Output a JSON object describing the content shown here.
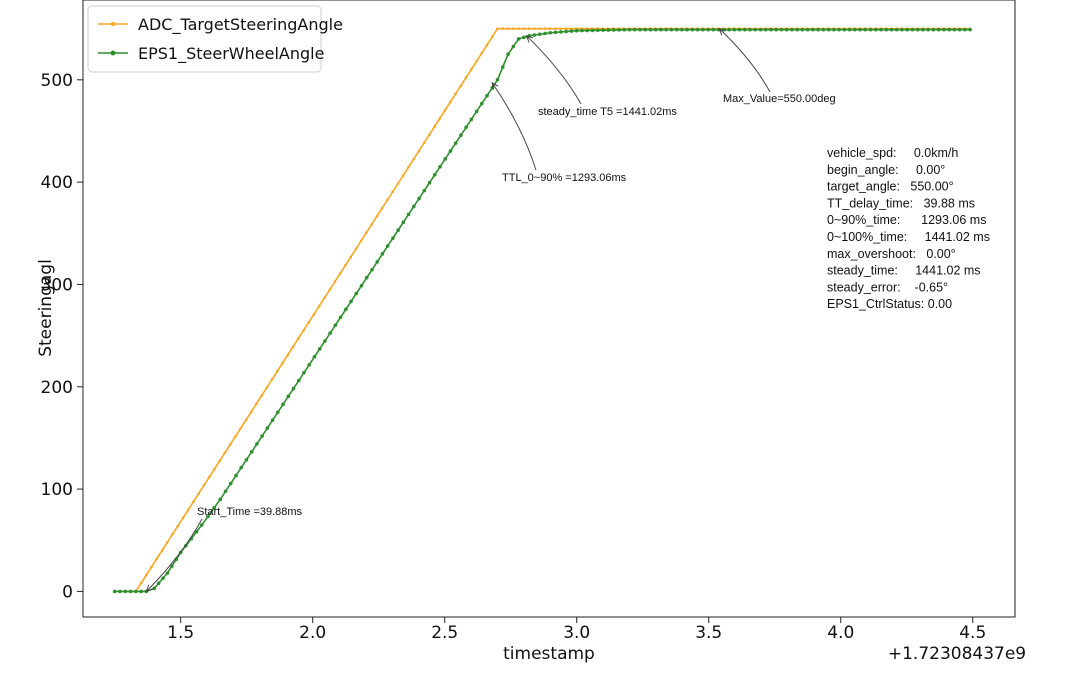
{
  "chart_data": {
    "type": "line",
    "xlabel": "timestamp",
    "ylabel": "Steeringagl",
    "x_offset_label": "+1.72308437e9",
    "xlim": [
      1.13,
      4.66
    ],
    "ylim": [
      -25,
      578
    ],
    "x_ticks": [
      1.5,
      2.0,
      2.5,
      3.0,
      3.5,
      4.0,
      4.5
    ],
    "x_tick_labels": [
      "1.5",
      "2.0",
      "2.5",
      "3.0",
      "3.5",
      "4.0",
      "4.5"
    ],
    "y_ticks": [
      0,
      100,
      200,
      300,
      400,
      500
    ],
    "y_tick_labels": [
      "0",
      "100",
      "200",
      "300",
      "400",
      "500"
    ],
    "grid": false,
    "legend_position": "top-left",
    "series": [
      {
        "name": "ADC_TargetSteeringAngle",
        "color": "#f5a623",
        "marker": "small-dot",
        "x": [
          1.25,
          1.33,
          2.7,
          4.49
        ],
        "y": [
          0,
          0,
          550,
          550
        ]
      },
      {
        "name": "EPS1_SteerWheelAngle",
        "color": "#2f8f2f",
        "marker": "dot",
        "x": [
          1.25,
          1.37,
          1.4,
          1.45,
          1.5,
          1.58,
          1.65,
          2.7,
          2.74,
          2.78,
          2.82,
          2.9,
          3.0,
          3.2,
          4.49
        ],
        "y": [
          0,
          0,
          3,
          18,
          38,
          65,
          90,
          500,
          525,
          540,
          543,
          546,
          548,
          549,
          549
        ]
      }
    ],
    "annotations": [
      {
        "text": "Start_Time =39.88ms",
        "point": [
          1.37,
          0
        ]
      },
      {
        "text": "TTL_0~90% =1293.06ms",
        "point": [
          2.68,
          497
        ]
      },
      {
        "text": "steady_time T5 =1441.02ms",
        "point": [
          2.81,
          543
        ]
      },
      {
        "text": "Max_Value=550.00deg",
        "point": [
          3.54,
          550
        ]
      }
    ],
    "stats_box": [
      "vehicle_spd:     0.0km/h",
      "begin_angle:     0.00°",
      "target_angle:   550.00°",
      "TT_delay_time:   39.88 ms",
      "0~90%_time:      1293.06 ms",
      "0~100%_time:     1441.02 ms",
      "max_overshoot:   0.00°",
      "steady_time:     1441.02 ms",
      "steady_error:    -0.65°",
      "EPS1_CtrlStatus: 0.00"
    ]
  }
}
